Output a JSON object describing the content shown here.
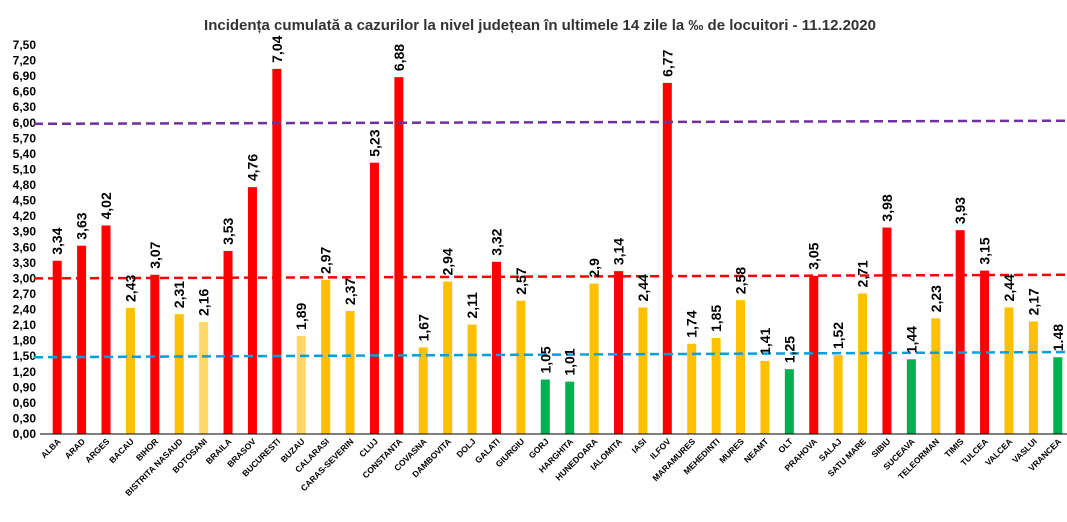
{
  "chart_data": {
    "type": "bar",
    "title": "Incidența cumulată a cazurilor la nivel județean în ultimele 14 zile la ‰ de locuitori - 11.12.2020",
    "ylim": [
      0,
      7.5
    ],
    "yticks": [
      "0,00",
      "0,30",
      "0,60",
      "0,90",
      "1,20",
      "1,50",
      "1,80",
      "2,10",
      "2,40",
      "2,70",
      "3,00",
      "3,30",
      "3,60",
      "3,90",
      "4,20",
      "4,50",
      "4,80",
      "5,10",
      "5,40",
      "5,70",
      "6,00",
      "6,30",
      "6,60",
      "6,90",
      "7,20",
      "7,50"
    ],
    "grid": false,
    "legend": "none",
    "categories": [
      "ALBA",
      "ARAD",
      "ARGES",
      "BACAU",
      "BIHOR",
      "BISTRITA NASAUD",
      "BOTOSANI",
      "BRAILA",
      "BRASOV",
      "BUCURESTI",
      "BUZAU",
      "CALARASI",
      "CARAS-SEVERIN",
      "CLUJ",
      "CONSTANTA",
      "COVASNA",
      "DAMBOVITA",
      "DOLJ",
      "GALATI",
      "GIURGIU",
      "GORJ",
      "HARGHITA",
      "HUNEDOARA",
      "IALOMITA",
      "IASI",
      "ILFOV",
      "MARAMURES",
      "MEHEDINTI",
      "MURES",
      "NEAMT",
      "OLT",
      "PRAHOVA",
      "SALAJ",
      "SATU MARE",
      "SIBIU",
      "SUCEAVA",
      "TELEORMAN",
      "TIMIS",
      "TULCEA",
      "VALCEA",
      "VASLUI",
      "VRANCEA"
    ],
    "values": [
      3.34,
      3.63,
      4.02,
      2.43,
      3.07,
      2.31,
      2.16,
      3.53,
      4.76,
      7.04,
      1.89,
      2.97,
      2.37,
      5.23,
      6.88,
      1.67,
      2.94,
      2.11,
      3.32,
      2.57,
      1.05,
      1.01,
      2.9,
      3.14,
      2.44,
      6.77,
      1.74,
      1.85,
      2.58,
      1.41,
      1.25,
      3.05,
      1.52,
      2.71,
      3.98,
      1.44,
      2.23,
      3.93,
      3.15,
      2.44,
      2.17,
      1.48
    ],
    "labels": [
      "3,34",
      "3,63",
      "4,02",
      "2,43",
      "3,07",
      "2,31",
      "2,16",
      "3,53",
      "4,76",
      "7,04",
      "1,89",
      "2,97",
      "2,37",
      "5,23",
      "6,88",
      "1,67",
      "2,94",
      "2,11",
      "3,32",
      "2,57",
      "1,05",
      "1,01",
      "2,9",
      "3,14",
      "2,44",
      "6,77",
      "1,74",
      "1,85",
      "2,58",
      "1,41",
      "1,25",
      "3,05",
      "1,52",
      "2,71",
      "3,98",
      "1,44",
      "2,23",
      "3,93",
      "3,15",
      "2,44",
      "2,17",
      "1.48"
    ],
    "bar_colors": [
      "#ff0000",
      "#ff0000",
      "#ff0000",
      "#ffc000",
      "#ff0000",
      "#ffc000",
      "#ffd966",
      "#ff0000",
      "#ff0000",
      "#ff0000",
      "#ffd966",
      "#ffc000",
      "#ffc000",
      "#ff0000",
      "#ff0000",
      "#ffc000",
      "#ffc000",
      "#ffc000",
      "#ff0000",
      "#ffc000",
      "#00b050",
      "#00b050",
      "#ffc000",
      "#ff0000",
      "#ffc000",
      "#ff0000",
      "#ffc000",
      "#ffc000",
      "#ffc000",
      "#ffc000",
      "#00b050",
      "#ff0000",
      "#ffc000",
      "#ffc000",
      "#ff0000",
      "#00b050",
      "#ffc000",
      "#ff0000",
      "#ff0000",
      "#ffc000",
      "#ffc000",
      "#00b050"
    ],
    "reference_lines": [
      {
        "color": "#7030a0",
        "style": "dashed",
        "start": 5.98,
        "end": 6.04
      },
      {
        "color": "#ff0000",
        "style": "dashed",
        "start": 3.0,
        "end": 3.07
      },
      {
        "color": "#00a0e0",
        "style": "dashed",
        "start": 1.48,
        "end": 1.58
      }
    ]
  }
}
